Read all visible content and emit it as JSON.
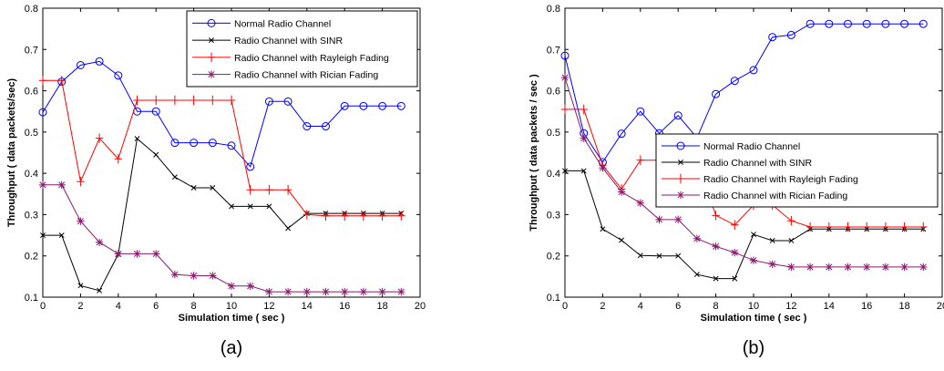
{
  "chart_data": [
    {
      "type": "line",
      "panel_label": "(a)",
      "xlabel": "Simulation time ( sec )",
      "ylabel": "Throughput ( data packets/sec)",
      "xlim": [
        0,
        20
      ],
      "ylim": [
        0.1,
        0.8
      ],
      "xticks": [
        "0",
        "2",
        "4",
        "6",
        "8",
        "10",
        "12",
        "14",
        "16",
        "18",
        "20"
      ],
      "yticks": [
        "0.1",
        "0.2",
        "0.3",
        "0.4",
        "0.5",
        "0.6",
        "0.7",
        "0.8"
      ],
      "legend_position": "top-right",
      "x": [
        0,
        1,
        2,
        3,
        4,
        5,
        6,
        7,
        8,
        9,
        10,
        11,
        12,
        13,
        14,
        15,
        16,
        17,
        18,
        19
      ],
      "series": [
        {
          "name": "Normal Radio Channel",
          "color": "#0000ff",
          "marker": "circle",
          "values": [
            0.548,
            0.622,
            0.662,
            0.671,
            0.637,
            0.55,
            0.55,
            0.474,
            0.474,
            0.474,
            0.467,
            0.416,
            0.574,
            0.574,
            0.514,
            0.514,
            0.563,
            0.563,
            0.563,
            0.563
          ]
        },
        {
          "name": "Radio Channel with SINR",
          "color": "#000000",
          "marker": "x",
          "values": [
            0.25,
            0.25,
            0.128,
            0.116,
            0.204,
            0.484,
            0.445,
            0.391,
            0.365,
            0.365,
            0.32,
            0.32,
            0.32,
            0.267,
            0.303,
            0.303,
            0.303,
            0.303,
            0.303,
            0.303
          ]
        },
        {
          "name": "Radio Channel with Rayleigh Fading",
          "color": "#ff0000",
          "marker": "plus",
          "values": [
            0.625,
            0.625,
            0.38,
            0.485,
            0.435,
            0.577,
            0.577,
            0.577,
            0.577,
            0.577,
            0.577,
            0.36,
            0.36,
            0.36,
            0.3,
            0.297,
            0.297,
            0.297,
            0.297,
            0.297
          ]
        },
        {
          "name": "Radio Channel with Rician Fading",
          "color": "#8b1a6e",
          "marker": "star",
          "values": [
            0.372,
            0.372,
            0.284,
            0.233,
            0.205,
            0.205,
            0.205,
            0.155,
            0.152,
            0.152,
            0.127,
            0.127,
            0.113,
            0.113,
            0.113,
            0.113,
            0.113,
            0.113,
            0.113,
            0.113
          ]
        }
      ]
    },
    {
      "type": "line",
      "panel_label": "(b)",
      "xlabel": "Simulation time ( sec )",
      "ylabel": "Throughput ( data packets / sec )",
      "xlim": [
        0,
        20
      ],
      "ylim": [
        0.1,
        0.8
      ],
      "xticks": [
        "0",
        "2",
        "4",
        "6",
        "8",
        "10",
        "12",
        "14",
        "16",
        "18",
        "20"
      ],
      "yticks": [
        "0.1",
        "0.2",
        "0.3",
        "0.4",
        "0.5",
        "0.6",
        "0.7",
        "0.8"
      ],
      "legend_position": "center-right",
      "x": [
        0,
        1,
        2,
        3,
        4,
        5,
        6,
        7,
        8,
        9,
        10,
        11,
        12,
        13,
        14,
        15,
        16,
        17,
        18,
        19
      ],
      "series": [
        {
          "name": "Normal Radio Channel",
          "color": "#0000ff",
          "marker": "circle",
          "values": [
            0.685,
            0.497,
            0.427,
            0.496,
            0.55,
            0.497,
            0.54,
            0.486,
            0.592,
            0.624,
            0.65,
            0.73,
            0.735,
            0.762,
            0.762,
            0.762,
            0.762,
            0.762,
            0.762,
            0.762
          ]
        },
        {
          "name": "Radio Channel with SINR",
          "color": "#000000",
          "marker": "x",
          "values": [
            0.406,
            0.406,
            0.265,
            0.238,
            0.201,
            0.2,
            0.2,
            0.155,
            0.145,
            0.145,
            0.252,
            0.237,
            0.237,
            0.265,
            0.265,
            0.265,
            0.265,
            0.265,
            0.265,
            0.265
          ]
        },
        {
          "name": "Radio Channel with Rayleigh Fading",
          "color": "#ff0000",
          "marker": "plus",
          "values": [
            0.555,
            0.555,
            0.42,
            0.362,
            0.432,
            0.432,
            0.432,
            0.432,
            0.298,
            0.275,
            0.323,
            0.323,
            0.285,
            0.27,
            0.27,
            0.27,
            0.27,
            0.27,
            0.27,
            0.27
          ]
        },
        {
          "name": "Radio Channel with Rician Fading",
          "color": "#8b1a6e",
          "marker": "star",
          "values": [
            0.632,
            0.485,
            0.413,
            0.355,
            0.328,
            0.288,
            0.288,
            0.242,
            0.223,
            0.208,
            0.189,
            0.18,
            0.173,
            0.173,
            0.173,
            0.173,
            0.173,
            0.173,
            0.173,
            0.173
          ]
        }
      ]
    }
  ]
}
